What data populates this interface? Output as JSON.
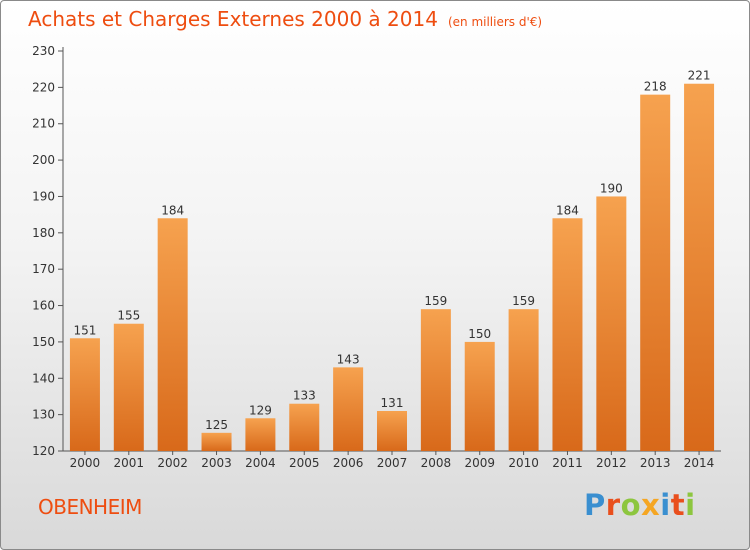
{
  "chart_data": {
    "type": "bar",
    "title": "Achats et Charges Externes 2000 à 2014",
    "subtitle": "(en milliers d'€)",
    "categories": [
      "2000",
      "2001",
      "2002",
      "2003",
      "2004",
      "2005",
      "2006",
      "2007",
      "2008",
      "2009",
      "2010",
      "2011",
      "2012",
      "2013",
      "2014"
    ],
    "values": [
      151,
      155,
      184,
      125,
      129,
      133,
      143,
      131,
      159,
      150,
      159,
      184,
      190,
      218,
      221
    ],
    "ylim": [
      120,
      230
    ],
    "yticks": [
      120,
      130,
      140,
      150,
      160,
      170,
      180,
      190,
      200,
      210,
      220,
      230
    ],
    "grid": false,
    "data_labels": true,
    "colors": {
      "bar_light": "#f6a24f",
      "bar_dark": "#d8691a",
      "axis": "#555555"
    }
  },
  "footer": {
    "commune": "OBENHEIM",
    "logo": {
      "text": "Proxiti",
      "letters": [
        {
          "ch": "P",
          "color": "#3a8fd0"
        },
        {
          "ch": "r",
          "color": "#e94f1d"
        },
        {
          "ch": "o",
          "color": "#8dc63f"
        },
        {
          "ch": "x",
          "color": "#f5a623"
        },
        {
          "ch": "i",
          "color": "#3a8fd0"
        },
        {
          "ch": "t",
          "color": "#e94f1d"
        },
        {
          "ch": "i",
          "color": "#8dc63f"
        }
      ]
    }
  }
}
